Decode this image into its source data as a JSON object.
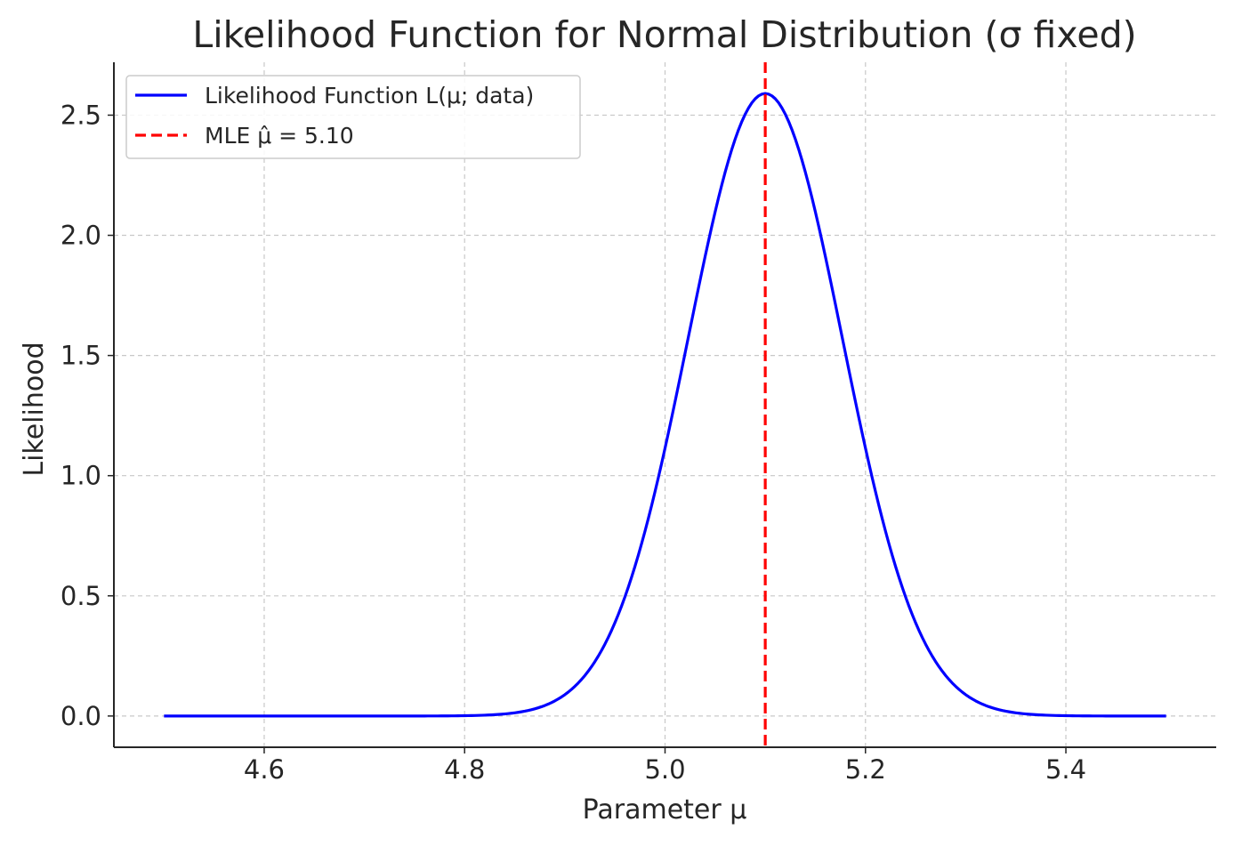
{
  "chart_data": {
    "type": "line",
    "title": "Likelihood Function for Normal Distribution (σ fixed)",
    "xlabel": "Parameter μ",
    "ylabel": "Likelihood",
    "xlim": [
      4.45,
      5.55
    ],
    "ylim": [
      -0.13,
      2.72
    ],
    "xticks": [
      4.6,
      4.8,
      5.0,
      5.2,
      5.4
    ],
    "xtick_labels": [
      "4.6",
      "4.8",
      "5.0",
      "5.2",
      "5.4"
    ],
    "yticks": [
      0.0,
      0.5,
      1.0,
      1.5,
      2.0,
      2.5
    ],
    "ytick_labels": [
      "0.0",
      "0.5",
      "1.0",
      "1.5",
      "2.0",
      "2.5"
    ],
    "grid": true,
    "legend_position": "top-left",
    "series": [
      {
        "name": "Likelihood Function L(μ; data)",
        "kind": "curve",
        "color": "#0000ff",
        "x_range": [
          4.5,
          5.5
        ],
        "peak_x": 5.1,
        "peak_y": 2.59,
        "spread": 0.077
      },
      {
        "name": "MLE μ̂ = 5.10",
        "kind": "vline",
        "x": 5.1,
        "color": "#ff0000",
        "linestyle": "dashed"
      }
    ]
  }
}
